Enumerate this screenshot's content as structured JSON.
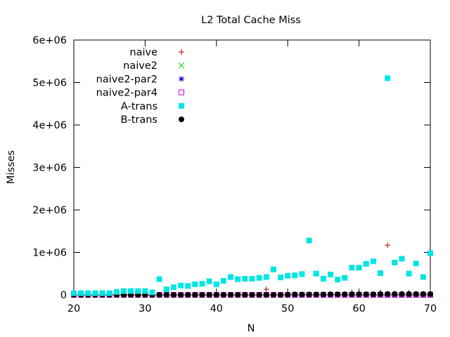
{
  "chart_data": {
    "type": "scatter",
    "title": "L2 Total Cache Miss",
    "xlabel": "N",
    "ylabel": "Misses",
    "xlim": [
      20,
      70
    ],
    "ylim": [
      0,
      6000000
    ],
    "xticks": [
      20,
      30,
      40,
      50,
      60,
      70
    ],
    "xtick_labels": [
      "20",
      "30",
      "40",
      "50",
      "60",
      "70"
    ],
    "yticks": [
      0,
      1000000,
      2000000,
      3000000,
      4000000,
      5000000,
      6000000
    ],
    "ytick_labels": [
      "0",
      "1e+06",
      "2e+06",
      "3e+06",
      "4e+06",
      "5e+06",
      "6e+06"
    ],
    "grid": false,
    "legend_position": "top-left",
    "x": [
      20,
      21,
      22,
      23,
      24,
      25,
      26,
      27,
      28,
      29,
      30,
      31,
      32,
      33,
      34,
      35,
      36,
      37,
      38,
      39,
      40,
      41,
      42,
      43,
      44,
      45,
      46,
      47,
      48,
      49,
      50,
      51,
      52,
      53,
      54,
      55,
      56,
      57,
      58,
      59,
      60,
      61,
      62,
      63,
      64,
      65,
      66,
      67,
      68,
      69,
      70
    ],
    "series": [
      {
        "name": "naive",
        "marker": "plus",
        "color": "#aa0000",
        "values": [
          5000,
          5000,
          5000,
          5000,
          5000,
          5000,
          5000,
          5000,
          5000,
          5000,
          5000,
          5000,
          5000,
          5000,
          5000,
          5000,
          5000,
          5000,
          5000,
          5000,
          5000,
          5000,
          5000,
          5000,
          5000,
          5000,
          5000,
          130000,
          5000,
          5000,
          40000,
          5000,
          5000,
          5000,
          5000,
          5000,
          5000,
          5000,
          5000,
          60000,
          5000,
          5000,
          5000,
          50000,
          1170000,
          30000,
          5000,
          50000,
          5000,
          5000,
          60000
        ]
      },
      {
        "name": "naive2",
        "marker": "cross",
        "color": "#00cc00",
        "values": [
          2000,
          2000,
          2000,
          2000,
          2000,
          2000,
          2000,
          2000,
          2000,
          2000,
          2000,
          2000,
          2000,
          2000,
          2000,
          2000,
          2000,
          2000,
          2000,
          2000,
          2000,
          2000,
          2000,
          2000,
          2000,
          2000,
          2000,
          2000,
          2000,
          2000,
          2000,
          2000,
          2000,
          2000,
          2000,
          2000,
          2000,
          2000,
          2000,
          2000,
          2000,
          2000,
          2000,
          2000,
          2000,
          2000,
          2000,
          2000,
          2000,
          2000,
          2000
        ]
      },
      {
        "name": "naive2-par2",
        "marker": "star",
        "color": "#0000cc",
        "values": [
          3000,
          3000,
          3000,
          3000,
          3000,
          3000,
          3000,
          3000,
          3000,
          3000,
          3000,
          3000,
          3000,
          3000,
          3000,
          3000,
          3000,
          3000,
          3000,
          3000,
          3000,
          3000,
          3000,
          3000,
          3000,
          3000,
          3000,
          3000,
          3000,
          3000,
          3000,
          3000,
          3000,
          3000,
          3000,
          3000,
          3000,
          3000,
          3000,
          3000,
          3000,
          3000,
          3000,
          3000,
          3000,
          3000,
          3000,
          3000,
          3000,
          3000,
          3000
        ]
      },
      {
        "name": "naive2-par4",
        "marker": "open-square",
        "color": "#cc00cc",
        "values": [
          0,
          0,
          0,
          0,
          0,
          0,
          0,
          0,
          0,
          0,
          0,
          0,
          0,
          0,
          0,
          0,
          0,
          0,
          0,
          0,
          0,
          0,
          0,
          0,
          0,
          0,
          0,
          0,
          0,
          0,
          0,
          0,
          0,
          0,
          0,
          0,
          0,
          0,
          0,
          0,
          0,
          0,
          0,
          0,
          0,
          0,
          0,
          0,
          0,
          0,
          0
        ]
      },
      {
        "name": "A-trans",
        "marker": "filled-square",
        "color": "#00e5e5",
        "values": [
          40000,
          40000,
          40000,
          40000,
          40000,
          40000,
          70000,
          90000,
          90000,
          90000,
          90000,
          60000,
          370000,
          130000,
          180000,
          220000,
          210000,
          250000,
          260000,
          320000,
          250000,
          330000,
          420000,
          370000,
          380000,
          380000,
          400000,
          420000,
          600000,
          410000,
          450000,
          460000,
          490000,
          1280000,
          500000,
          380000,
          480000,
          360000,
          400000,
          640000,
          640000,
          730000,
          790000,
          510000,
          5100000,
          760000,
          850000,
          500000,
          740000,
          420000,
          980000
        ]
      },
      {
        "name": "B-trans",
        "marker": "filled-circle",
        "color": "#000000",
        "values": [
          0,
          0,
          0,
          0,
          0,
          0,
          0,
          0,
          0,
          0,
          0,
          0,
          0,
          0,
          0,
          0,
          0,
          0,
          0,
          0,
          0,
          0,
          0,
          0,
          0,
          0,
          0,
          0,
          0,
          0,
          5000,
          10000,
          10000,
          10000,
          10000,
          10000,
          15000,
          15000,
          15000,
          15000,
          15000,
          15000,
          15000,
          20000,
          20000,
          20000,
          20000,
          20000,
          20000,
          20000,
          20000
        ]
      }
    ]
  }
}
